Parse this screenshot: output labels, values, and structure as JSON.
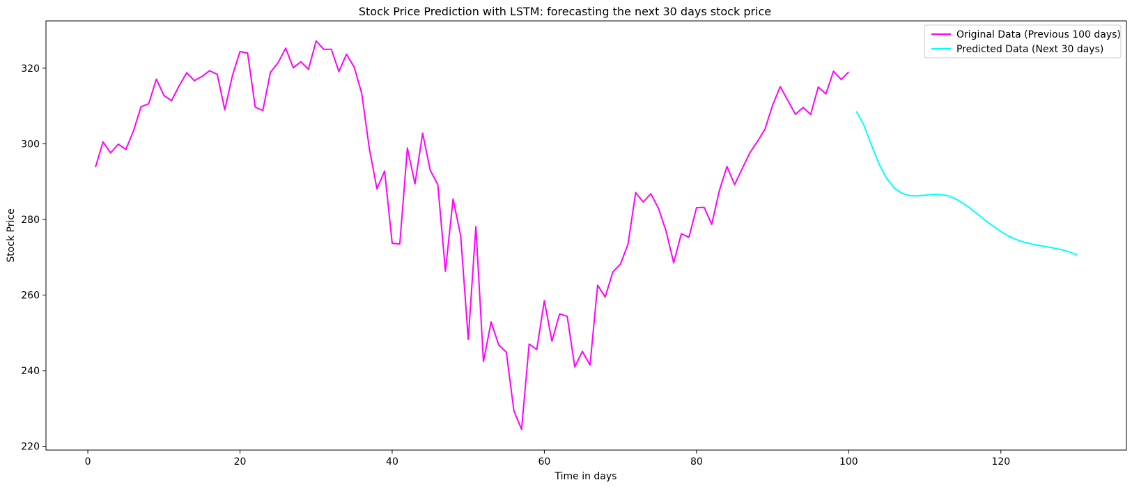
{
  "chart_data": {
    "type": "line",
    "title": "Stock Price Prediction with LSTM: forecasting the next 30 days stock price",
    "xlabel": "Time in days",
    "ylabel": "Stock Price",
    "xlim": [
      -5.5,
      136.5
    ],
    "ylim": [
      219,
      332.5
    ],
    "xticks": [
      0,
      20,
      40,
      60,
      80,
      100,
      120
    ],
    "yticks": [
      220,
      240,
      260,
      280,
      300,
      320
    ],
    "grid": false,
    "legend_position": "upper right",
    "series": [
      {
        "name": "Original Data (Previous 100 days)",
        "color": "#ff00ff",
        "x": [
          1,
          2,
          3,
          4,
          5,
          6,
          7,
          8,
          9,
          10,
          11,
          12,
          13,
          14,
          15,
          16,
          17,
          18,
          19,
          20,
          21,
          22,
          23,
          24,
          25,
          26,
          27,
          28,
          29,
          30,
          31,
          32,
          33,
          34,
          35,
          36,
          37,
          38,
          39,
          40,
          41,
          42,
          43,
          44,
          45,
          46,
          47,
          48,
          49,
          50,
          51,
          52,
          53,
          54,
          55,
          56,
          57,
          58,
          59,
          60,
          61,
          62,
          63,
          64,
          65,
          66,
          67,
          68,
          69,
          70,
          71,
          72,
          73,
          74,
          75,
          76,
          77,
          78,
          79,
          80,
          81,
          82,
          83,
          84,
          85,
          86,
          87,
          88,
          89,
          90,
          91,
          92,
          93,
          94,
          95,
          96,
          97,
          98,
          99,
          100
        ],
        "y": [
          293.8,
          300.5,
          297.6,
          299.9,
          298.5,
          303.4,
          309.8,
          310.6,
          317.1,
          312.8,
          311.4,
          315.3,
          318.8,
          316.7,
          317.8,
          319.3,
          318.4,
          309.0,
          318.0,
          324.4,
          324.0,
          309.7,
          308.8,
          318.9,
          321.4,
          325.3,
          320.1,
          321.7,
          319.7,
          327.2,
          325.0,
          325.0,
          319.1,
          323.7,
          320.3,
          313.3,
          298.7,
          288.1,
          292.8,
          273.7,
          273.5,
          298.9,
          289.4,
          302.8,
          293.0,
          289.2,
          266.3,
          285.4,
          275.7,
          248.3,
          278.1,
          242.4,
          252.9,
          246.8,
          244.9,
          229.4,
          224.5,
          247.0,
          245.6,
          258.5,
          247.8,
          255.0,
          254.4,
          241.0,
          245.1,
          241.5,
          262.6,
          259.5,
          266.1,
          268.2,
          273.5,
          287.1,
          284.6,
          286.8,
          282.9,
          276.9,
          268.5,
          276.2,
          275.3,
          283.1,
          283.2,
          278.7,
          287.6,
          294.0,
          289.2,
          293.4,
          297.6,
          300.6,
          303.9,
          310.2,
          315.1,
          311.5,
          307.8,
          309.6,
          307.8,
          315.0,
          313.2,
          319.2,
          317.0,
          319.0
        ]
      },
      {
        "name": "Predicted Data (Next 30 days)",
        "color": "#00ffff",
        "x": [
          101,
          102,
          103,
          104,
          105,
          106,
          107,
          108,
          109,
          110,
          111,
          112,
          113,
          114,
          115,
          116,
          117,
          118,
          119,
          120,
          121,
          122,
          123,
          124,
          125,
          126,
          127,
          128,
          129,
          130
        ],
        "y": [
          308.6,
          304.9,
          299.6,
          294.6,
          290.8,
          288.3,
          286.9,
          286.3,
          286.2,
          286.4,
          286.6,
          286.6,
          286.3,
          285.5,
          284.3,
          282.9,
          281.3,
          279.7,
          278.2,
          276.8,
          275.6,
          274.7,
          274.0,
          273.5,
          273.1,
          272.8,
          272.4,
          272.0,
          271.4,
          270.6
        ]
      }
    ]
  }
}
